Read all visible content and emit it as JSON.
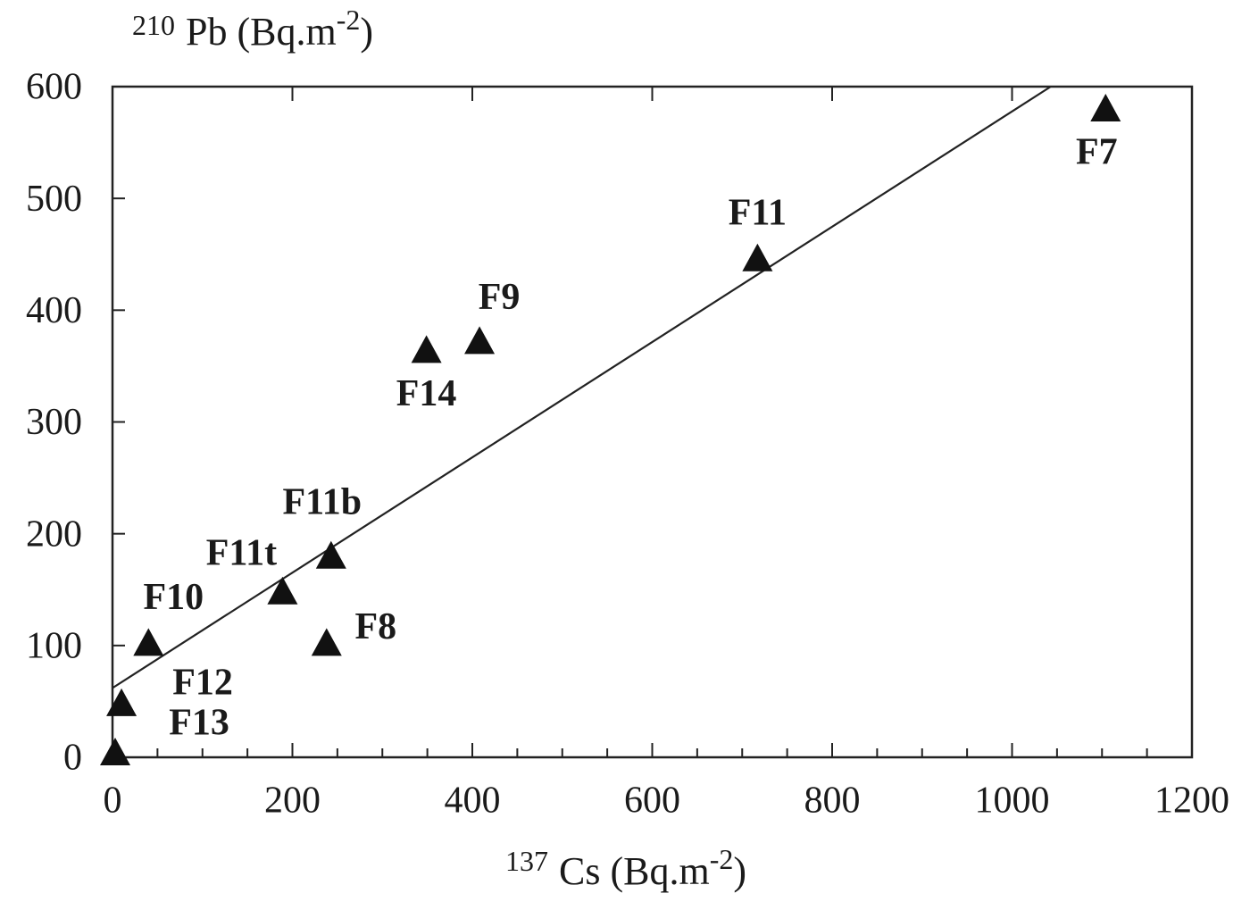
{
  "chart_data": {
    "type": "scatter",
    "ylabel": [
      "210",
      "Pb (Bq.m",
      "-2",
      ")"
    ],
    "xlabel": [
      "137",
      "Cs (Bq.m",
      "-2",
      ")"
    ],
    "labels": [
      "F7",
      "F11",
      "F9",
      "F14",
      "F11b",
      "F11t",
      "F8",
      "F10",
      "F12",
      "F13"
    ],
    "x": [
      1104,
      717,
      408,
      349,
      243,
      189,
      238,
      40,
      10,
      3
    ],
    "values": [
      580,
      446,
      372,
      364,
      180,
      148,
      102,
      102,
      48,
      4
    ],
    "color": "#111111",
    "trend_line": {
      "x": [
        0,
        1043
      ],
      "y": [
        62,
        600
      ]
    },
    "xlim": [
      0,
      1200
    ],
    "ylim": [
      0,
      600
    ],
    "xticks": [
      0,
      200,
      400,
      600,
      800,
      1000,
      1200
    ],
    "xminorticks": [
      50,
      100,
      150,
      250,
      300,
      350,
      450,
      500,
      550,
      650,
      700,
      750,
      850,
      900,
      950,
      1050,
      1100,
      1150
    ],
    "yticks": [
      0,
      100,
      200,
      300,
      400,
      500,
      600
    ],
    "grid": false
  }
}
